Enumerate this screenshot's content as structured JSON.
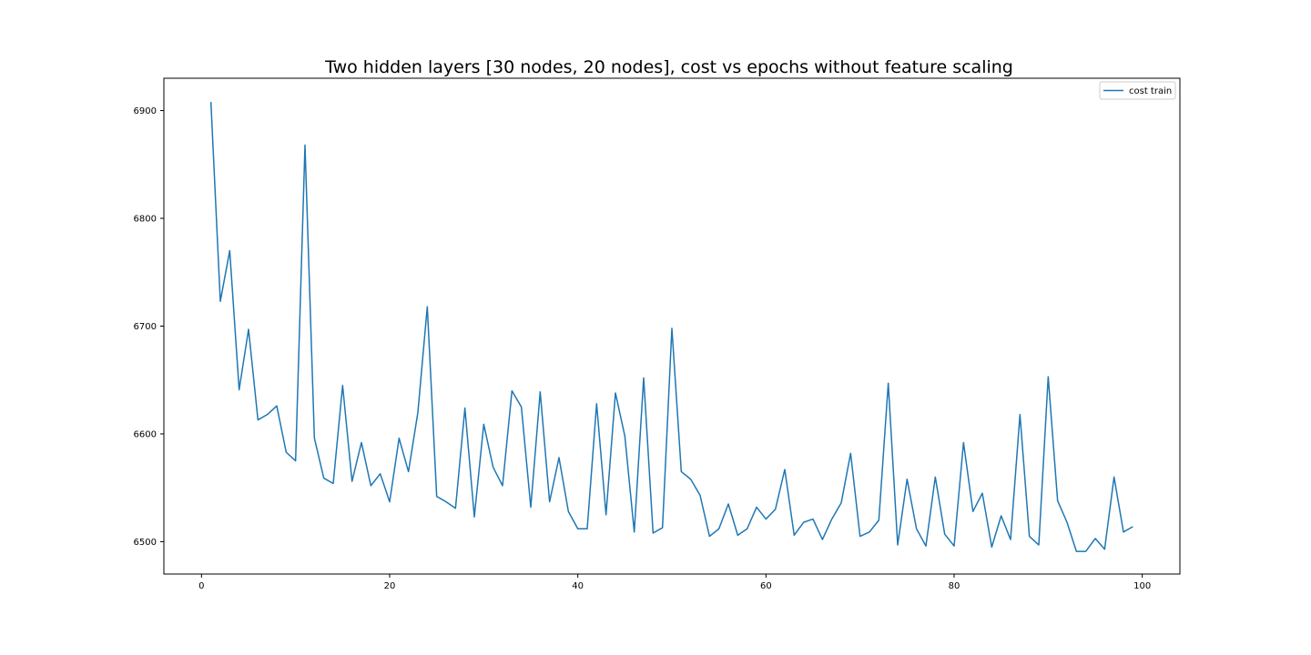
{
  "chart_data": {
    "type": "line",
    "title": "Two hidden layers [30 nodes, 20 nodes], cost vs epochs without feature scaling",
    "xlabel": "",
    "ylabel": "",
    "xlim": [
      -4,
      104
    ],
    "ylim": [
      6470,
      6930
    ],
    "x_ticks": [
      0,
      20,
      40,
      60,
      80,
      100
    ],
    "y_ticks": [
      6500,
      6600,
      6700,
      6800,
      6900
    ],
    "grid": false,
    "legend": "top-right",
    "series_color": "#1f77b4",
    "series": [
      {
        "name": "cost train",
        "x": [
          1,
          2,
          3,
          4,
          5,
          6,
          7,
          8,
          9,
          10,
          11,
          12,
          13,
          14,
          15,
          16,
          17,
          18,
          19,
          20,
          21,
          22,
          23,
          24,
          25,
          26,
          27,
          28,
          29,
          30,
          31,
          32,
          33,
          34,
          35,
          36,
          37,
          38,
          39,
          40,
          41,
          42,
          43,
          44,
          45,
          46,
          47,
          48,
          49,
          50,
          51,
          52,
          53,
          54,
          55,
          56,
          57,
          58,
          59,
          60,
          61,
          62,
          63,
          64,
          65,
          66,
          67,
          68,
          69,
          70,
          71,
          72,
          73,
          74,
          75,
          76,
          77,
          78,
          79,
          80,
          81,
          82,
          83,
          84,
          85,
          86,
          87,
          88,
          89,
          90,
          91,
          92,
          93,
          94,
          95,
          96,
          97,
          98,
          99
        ],
        "values": [
          6908,
          6723,
          6770,
          6641,
          6697,
          6613,
          6618,
          6626,
          6583,
          6575,
          6868,
          6596,
          6559,
          6554,
          6645,
          6556,
          6592,
          6552,
          6563,
          6537,
          6596,
          6565,
          6620,
          6718,
          6542,
          6537,
          6531,
          6624,
          6523,
          6609,
          6569,
          6552,
          6640,
          6625,
          6532,
          6639,
          6537,
          6578,
          6528,
          6512,
          6512,
          6628,
          6525,
          6638,
          6598,
          6509,
          6652,
          6508,
          6513,
          6698,
          6565,
          6558,
          6543,
          6505,
          6512,
          6535,
          6506,
          6512,
          6532,
          6521,
          6530,
          6567,
          6506,
          6518,
          6521,
          6502,
          6521,
          6536,
          6582,
          6505,
          6509,
          6520,
          6647,
          6497,
          6558,
          6512,
          6496,
          6560,
          6507,
          6496,
          6592,
          6528,
          6545,
          6495,
          6524,
          6502,
          6618,
          6505,
          6497,
          6653,
          6538,
          6518,
          6491,
          6491,
          6503,
          6493,
          6560,
          6509,
          6514
        ]
      }
    ]
  }
}
